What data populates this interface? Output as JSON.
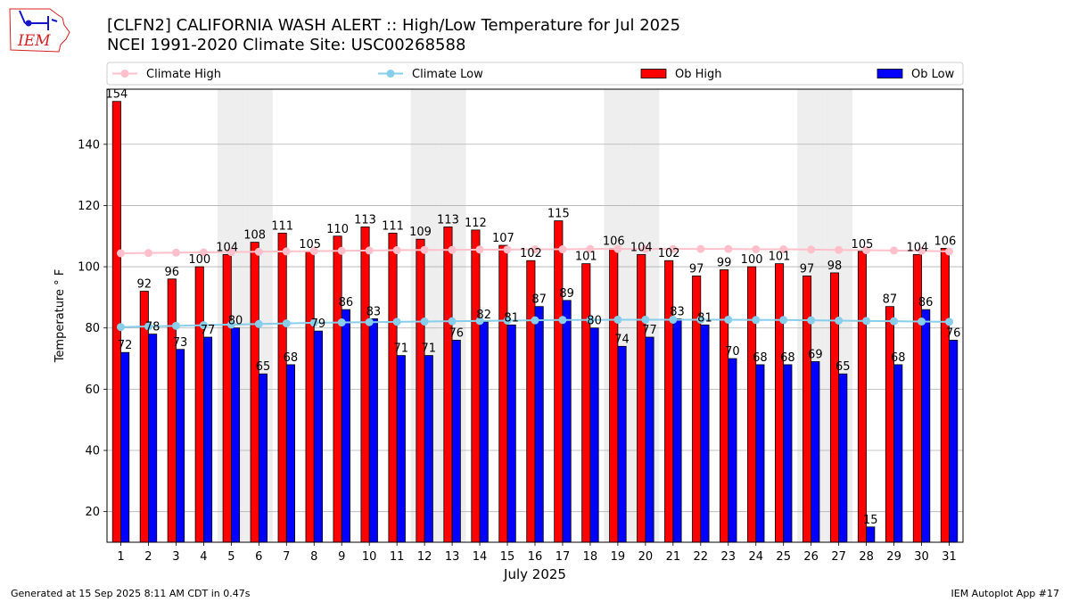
{
  "header": {
    "title_line1": "[CLFN2] CALIFORNIA WASH ALERT :: High/Low Temperature for Jul 2025",
    "title_line2": "NCEI 1991-2020 Climate Site: USC00268588",
    "logo_text": "IEM"
  },
  "footer": {
    "generated": "Generated at 15 Sep 2025 8:11 AM CDT in 0.47s",
    "app": "IEM Autoplot App #17"
  },
  "colors": {
    "ob_high": "#ff0000",
    "ob_low": "#0000ff",
    "climate_high": "#ffc0cb",
    "climate_low": "#87ceeb",
    "weekend_shade": "#eeeeee",
    "logo": "#1515c8",
    "logo_text": "#d42020"
  },
  "chart_data": {
    "type": "bar",
    "title": "[CLFN2] CALIFORNIA WASH ALERT :: High/Low Temperature for Jul 2025",
    "subtitle": "NCEI 1991-2020 Climate Site: USC00268588",
    "xlabel": "July 2025",
    "ylabel": "Temperature ° F",
    "ylim": [
      10,
      158
    ],
    "yticks": [
      20,
      40,
      60,
      80,
      100,
      120,
      140
    ],
    "grid": "y",
    "legend": "top",
    "shaded_weekends": [
      5,
      6,
      12,
      13,
      19,
      20,
      26,
      27
    ],
    "x": [
      1,
      2,
      3,
      4,
      5,
      6,
      7,
      8,
      9,
      10,
      11,
      12,
      13,
      14,
      15,
      16,
      17,
      18,
      19,
      20,
      21,
      22,
      23,
      24,
      25,
      26,
      27,
      28,
      29,
      30,
      31
    ],
    "series": [
      {
        "name": "Climate High",
        "kind": "line",
        "values": [
          104.4,
          104.5,
          104.6,
          104.7,
          104.8,
          104.9,
          105.0,
          105.1,
          105.2,
          105.3,
          105.4,
          105.5,
          105.5,
          105.6,
          105.6,
          105.7,
          105.7,
          105.8,
          105.8,
          105.8,
          105.8,
          105.8,
          105.8,
          105.7,
          105.7,
          105.6,
          105.5,
          105.4,
          105.3,
          105.2,
          105.0
        ]
      },
      {
        "name": "Climate Low",
        "kind": "line",
        "values": [
          80.3,
          80.5,
          80.7,
          80.9,
          81.1,
          81.3,
          81.5,
          81.7,
          81.8,
          81.9,
          82.0,
          82.1,
          82.2,
          82.3,
          82.4,
          82.5,
          82.6,
          82.6,
          82.7,
          82.7,
          82.7,
          82.7,
          82.7,
          82.6,
          82.6,
          82.5,
          82.4,
          82.3,
          82.2,
          82.1,
          82.0
        ]
      },
      {
        "name": "Ob High",
        "kind": "bar",
        "values": [
          154,
          92,
          96,
          100,
          104,
          108,
          111,
          105,
          110,
          113,
          111,
          109,
          113,
          112,
          107,
          102,
          115,
          101,
          106,
          104,
          102,
          97,
          99,
          100,
          101,
          97,
          98,
          105,
          87,
          104,
          106
        ]
      },
      {
        "name": "Ob Low",
        "kind": "bar",
        "values": [
          72,
          78,
          73,
          77,
          80,
          65,
          68,
          79,
          86,
          83,
          71,
          71,
          76,
          82,
          81,
          87,
          89,
          80,
          74,
          77,
          83,
          81,
          70,
          68,
          68,
          69,
          65,
          15,
          68,
          86,
          76
        ]
      }
    ]
  }
}
